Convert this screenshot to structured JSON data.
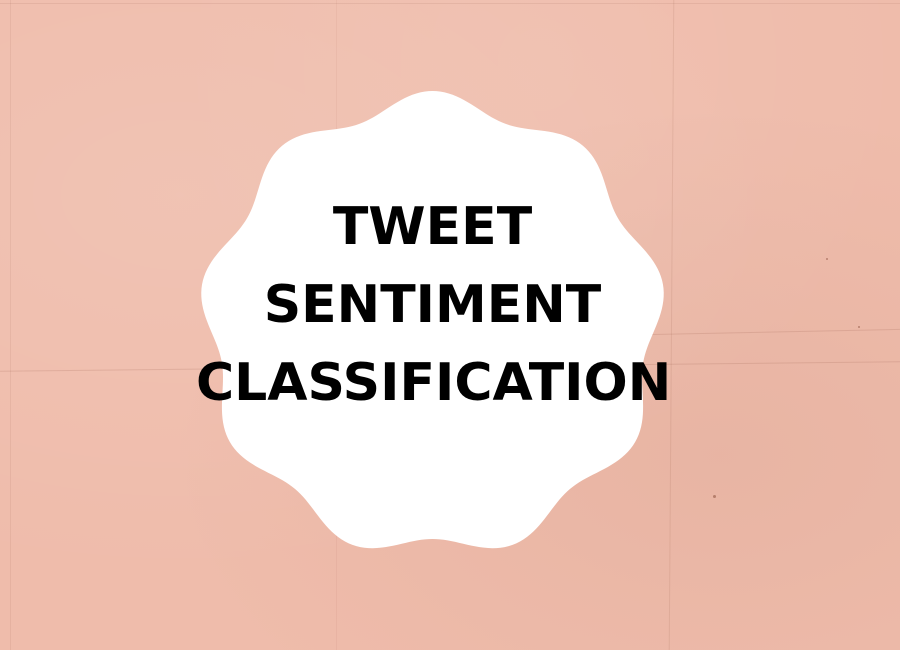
{
  "background": {
    "color": "#efbcab",
    "texture": "crumpled-paper"
  },
  "badge": {
    "shape": "scalloped-circle",
    "fill": "#ffffff"
  },
  "title": {
    "lines": [
      "TWEET",
      "SENTIMENT",
      "CLASSIFICATION"
    ],
    "color": "#000000"
  }
}
